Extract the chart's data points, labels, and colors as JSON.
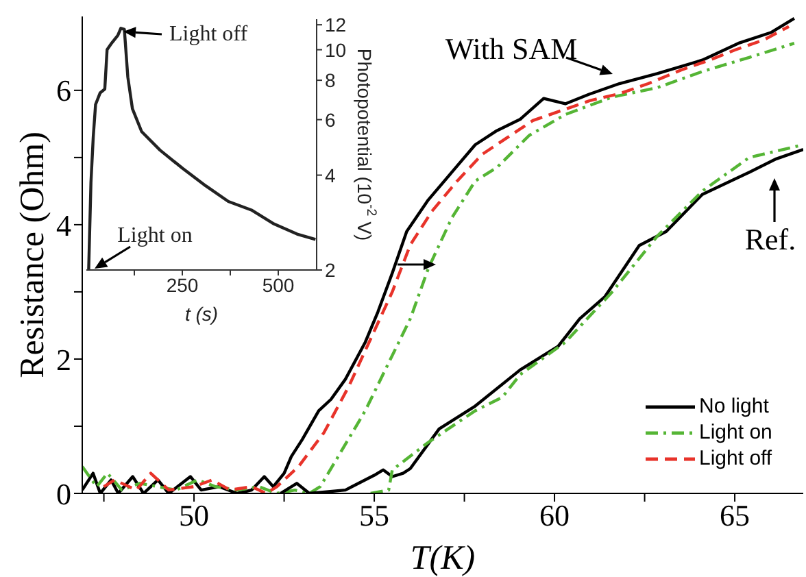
{
  "chart_data": [
    {
      "type": "line",
      "xlabel": "T(K)",
      "ylabel": "Resistance (Ohm)",
      "xlim": [
        46.9,
        66.9
      ],
      "ylim": [
        0,
        7.1
      ],
      "xticks": [
        {
          "value": 47.5,
          "label": null
        },
        50,
        {
          "value": 52.5,
          "label": null
        },
        55,
        {
          "value": 57.5,
          "label": null
        },
        60,
        {
          "value": 62.5,
          "label": null
        },
        65
      ],
      "yticks": [
        0,
        {
          "value": 1,
          "label": null
        },
        2,
        {
          "value": 3,
          "label": null
        },
        4,
        {
          "value": 5,
          "label": null
        },
        6
      ],
      "legend": "bottom right",
      "grid": false,
      "annotations": [
        "With SAM",
        "Ref."
      ],
      "series": [
        {
          "name": "No light",
          "color": "#000000",
          "line_style": "solid",
          "x": [
            46.9,
            47.2,
            47.4,
            47.7,
            47.9,
            48.3,
            48.6,
            49.0,
            49.3,
            49.9,
            50.2,
            50.7,
            51.2,
            51.6,
            51.95,
            52.2,
            52.5,
            52.7,
            53.0,
            53.46,
            53.8,
            54.2,
            54.75,
            55.1,
            55.5,
            55.9,
            56.5,
            57.15,
            57.8,
            58.4,
            59.05,
            59.7,
            60.3,
            60.95,
            61.8,
            62.85,
            64.1,
            65.1,
            66.0,
            66.65
          ],
          "values": [
            0.05,
            0.3,
            0.0,
            0.2,
            0.0,
            0.25,
            0.0,
            0.2,
            0.0,
            0.25,
            0.05,
            0.1,
            0.0,
            0.05,
            0.25,
            0.1,
            0.3,
            0.55,
            0.8,
            1.23,
            1.4,
            1.7,
            2.25,
            2.7,
            3.28,
            3.9,
            4.37,
            4.78,
            5.19,
            5.4,
            5.57,
            5.88,
            5.8,
            5.94,
            6.1,
            6.25,
            6.45,
            6.7,
            6.86,
            7.07
          ]
        },
        {
          "name": "Light on",
          "color": "#55b535",
          "line_style": "dashdot",
          "x": [
            46.9,
            47.3,
            47.6,
            48.0,
            48.5,
            49.0,
            49.5,
            50.1,
            50.6,
            51.2,
            51.8,
            52.3,
            52.8,
            53.2,
            53.5,
            54.0,
            54.75,
            55.36,
            56.0,
            56.5,
            57.15,
            57.8,
            58.4,
            59.3,
            60.3,
            61.6,
            62.85,
            64.1,
            65.4,
            66.65
          ],
          "values": [
            0.4,
            0.1,
            0.3,
            0.05,
            0.15,
            0.1,
            0.05,
            0.2,
            0.1,
            0.05,
            0.1,
            0.0,
            0.05,
            0.0,
            0.1,
            0.55,
            1.23,
            1.9,
            2.6,
            3.35,
            4.1,
            4.65,
            4.85,
            5.33,
            5.64,
            5.9,
            6.04,
            6.28,
            6.49,
            6.7
          ]
        },
        {
          "name": "Light off",
          "color": "#e8332a",
          "line_style": "dashed",
          "x": [
            47.5,
            47.8,
            48.4,
            48.8,
            49.3,
            50.0,
            50.5,
            51.0,
            51.6,
            52.0,
            52.3,
            52.9,
            53.6,
            54.3,
            54.9,
            55.5,
            56.0,
            56.6,
            57.3,
            58.0,
            58.7,
            59.4,
            60.2,
            61.0,
            61.8,
            62.6,
            63.5,
            64.3,
            65.0,
            65.8,
            66.5
          ],
          "values": [
            0.1,
            0.2,
            0.05,
            0.3,
            0.05,
            0.1,
            0.2,
            0.05,
            0.1,
            0.0,
            0.1,
            0.4,
            0.9,
            1.6,
            2.3,
            3.0,
            3.7,
            4.2,
            4.65,
            5.05,
            5.3,
            5.55,
            5.7,
            5.85,
            5.95,
            6.1,
            6.3,
            6.45,
            6.6,
            6.75,
            6.95
          ]
        },
        {
          "color": "#000000",
          "line_style": "solid",
          "x": [
            52.4,
            52.85,
            53.2,
            54.2,
            55.0,
            55.25,
            55.5,
            55.8,
            56.0,
            56.8,
            57.8,
            59.05,
            60.1,
            60.7,
            61.4,
            62.35,
            63.1,
            64.1,
            65.4,
            66.15,
            66.9
          ],
          "values": [
            0.0,
            0.15,
            0.0,
            0.05,
            0.27,
            0.35,
            0.25,
            0.3,
            0.37,
            0.96,
            1.3,
            1.84,
            2.19,
            2.6,
            2.93,
            3.69,
            3.9,
            4.45,
            4.78,
            4.98,
            5.12
          ]
        },
        {
          "color": "#55b535",
          "line_style": "dashdot",
          "x": [
            54.9,
            55.4,
            55.5,
            56.5,
            57.8,
            58.55,
            59.05,
            60.3,
            61.6,
            62.85,
            64.1,
            65.4,
            66.9
          ],
          "values": [
            0.0,
            0.05,
            0.35,
            0.76,
            1.23,
            1.43,
            1.77,
            2.25,
            3.0,
            3.83,
            4.5,
            5.0,
            5.19
          ]
        }
      ]
    },
    {
      "type": "line",
      "xlabel": "t (s)",
      "y2label": "Photopotential (10$^{-2}$ V)",
      "xlim": [
        0,
        600
      ],
      "xticks": [
        {
          "value": 125,
          "label": null
        },
        250,
        {
          "value": 375,
          "label": null
        },
        500
      ],
      "y2lim": [
        2,
        12.5
      ],
      "y2ticks": [
        2,
        4,
        6,
        8,
        10,
        12
      ],
      "log": "y2",
      "legend": false,
      "grid": false,
      "annotations": [
        "Light off",
        "Light on"
      ],
      "series": [
        {
          "color": "#222222",
          "line_style": "solid",
          "axis": "y2",
          "x": [
            6,
            12,
            18,
            24,
            36,
            48,
            54,
            66,
            82,
            90,
            99,
            108,
            120,
            144,
            192,
            251,
            311,
            370,
            430,
            489,
            549,
            597
          ],
          "values": [
            2,
            3.8,
            5.3,
            6.7,
            7.3,
            7.5,
            10.0,
            10.5,
            11.1,
            11.7,
            11.6,
            8.2,
            6.5,
            5.5,
            4.8,
            4.2,
            3.7,
            3.3,
            3.1,
            2.8,
            2.6,
            2.5
          ]
        }
      ]
    }
  ]
}
